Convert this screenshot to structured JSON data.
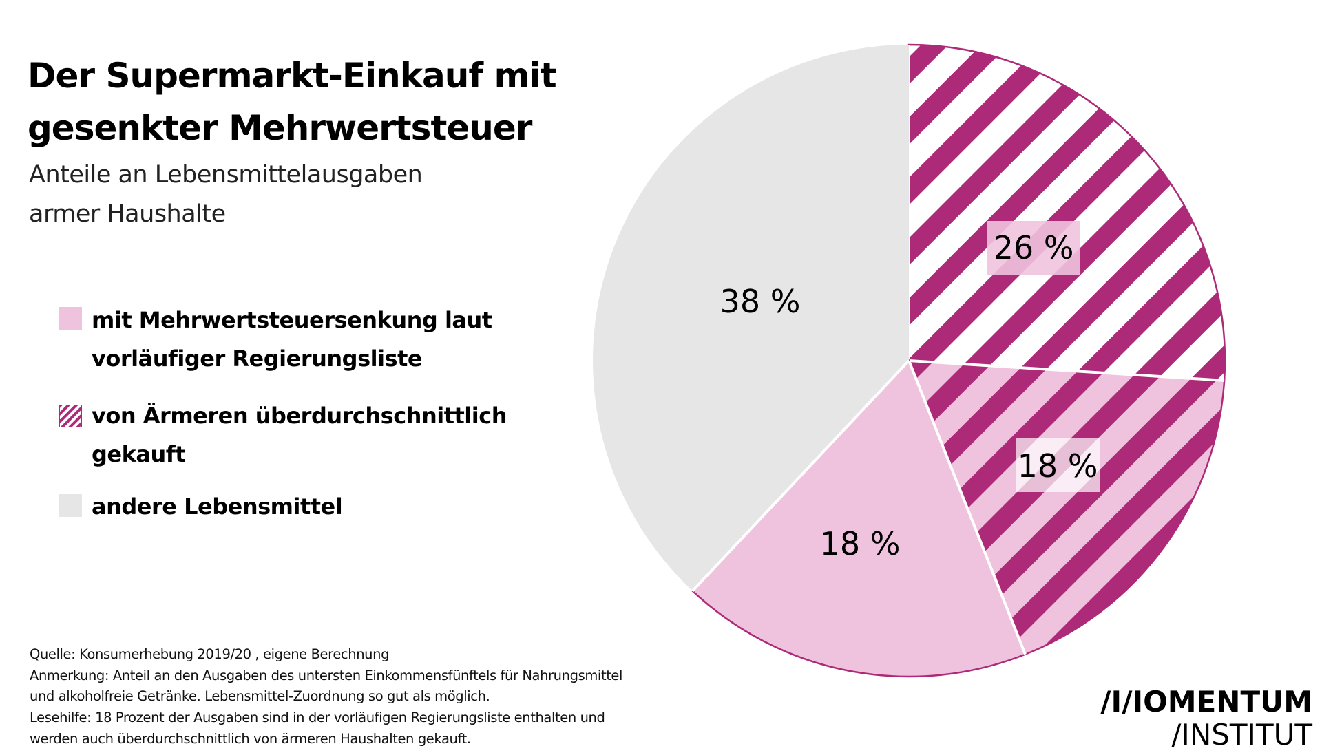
{
  "header": {
    "title_line1": "Der Supermarkt-Einkauf mit",
    "title_line2": "gesenkter Mehrwertsteuer",
    "subtitle_line1": "Anteile an Lebensmittelausgaben",
    "subtitle_line2": "armer Haushalte"
  },
  "legend": [
    {
      "line1": "mit Mehrwertsteuersenkung laut",
      "line2": "vorläufiger Regierungsliste",
      "swatch": "solid-pink"
    },
    {
      "line1": "von Ärmeren überdurchschnittlich",
      "line2": "gekauft",
      "swatch": "hatched-magenta"
    },
    {
      "line1": "andere Lebensmittel",
      "line2": "",
      "swatch": "solid-gray"
    }
  ],
  "chart_data": {
    "type": "pie",
    "start": "12 o'clock, clockwise",
    "slices": [
      {
        "label": "26 %",
        "value": 26,
        "fill": "hatched-white",
        "categories": [
          "von Ärmeren überdurchschnittlich gekauft"
        ]
      },
      {
        "label": "18 %",
        "value": 18,
        "fill": "hatched-pink",
        "categories": [
          "mit Mehrwertsteuersenkung laut vorläufiger Regierungsliste",
          "von Ärmeren überdurchschnittlich gekauft"
        ]
      },
      {
        "label": "18 %",
        "value": 18,
        "fill": "solid-pink",
        "categories": [
          "mit Mehrwertsteuersenkung laut vorläufiger Regierungsliste"
        ]
      },
      {
        "label": "38 %",
        "value": 38,
        "fill": "solid-gray",
        "categories": [
          "andere Lebensmittel"
        ]
      }
    ],
    "colors": {
      "magenta": "#AD2A78",
      "pink": "#EFC3DD",
      "gray": "#E6E6E6",
      "white": "#FFFFFF"
    }
  },
  "footer": {
    "lines": [
      "Quelle: Konsumerhebung 2019/20 , eigene Berechnung",
      "Anmerkung: Anteil an den Ausgaben des untersten Einkommensfünftels für Nahrungsmittel",
      "und alkoholfreie Getränke. Lebensmittel-Zuordnung so gut als möglich.",
      "Lesehilfe: 18 Prozent der Ausgaben sind in der vorläufigen Regierungsliste enthalten und",
      "werden auch überdurchschnittlich von ärmeren Haushalten gekauft."
    ]
  },
  "logo": {
    "line1": "/I/IOMENTUM",
    "line2": "/INSTITUT"
  }
}
